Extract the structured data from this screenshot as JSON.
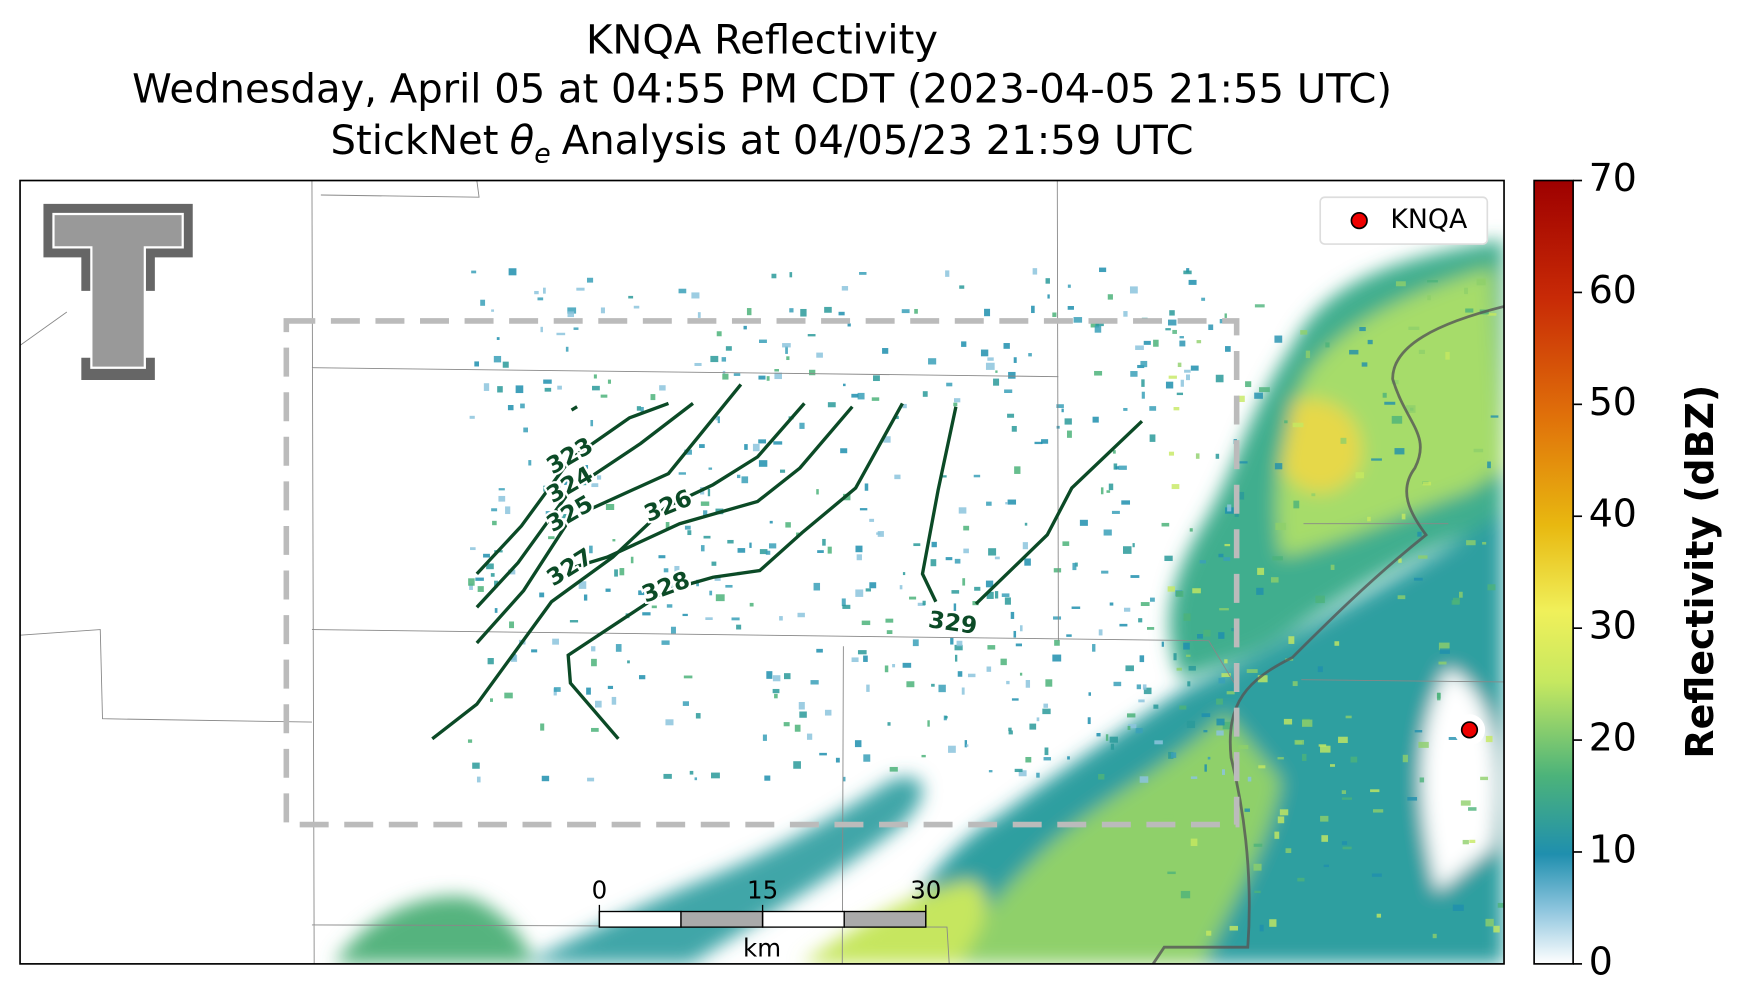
{
  "header": {
    "title": "KNQA Reflectivity",
    "subtitle": "Wednesday, April 05 at 04:55 PM CDT (2023-04-05 21:55 UTC)",
    "analysis": {
      "prefix": "StickNet",
      "symbol": "θ",
      "subscript": "e",
      "suffix": "Analysis at 04/05/23 21:59 UTC"
    }
  },
  "legend": {
    "label": "KNQA"
  },
  "colorbar": {
    "label": "Reflectivity (dBZ)",
    "lim": [
      0,
      70
    ],
    "ticks": [
      0,
      10,
      20,
      30,
      40,
      50,
      60,
      70
    ]
  },
  "contours": {
    "labels": [
      323,
      324,
      325,
      326,
      327,
      328,
      329
    ]
  },
  "scalebar": {
    "ticks": [
      0,
      15,
      30
    ],
    "unit": "km"
  }
}
